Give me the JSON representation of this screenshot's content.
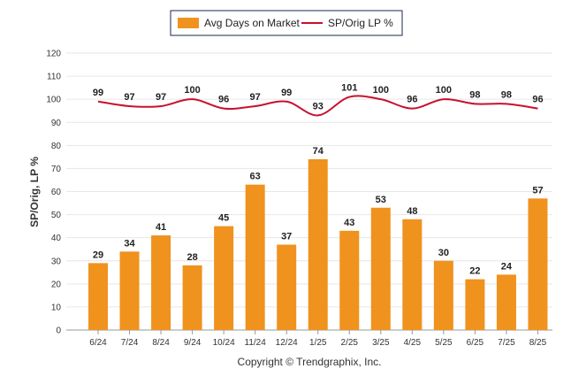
{
  "chart_data": {
    "type": "bar",
    "categories": [
      "6/24",
      "7/24",
      "8/24",
      "9/24",
      "10/24",
      "11/24",
      "12/24",
      "1/25",
      "2/25",
      "3/25",
      "4/25",
      "5/25",
      "6/25",
      "7/25",
      "8/25"
    ],
    "series": [
      {
        "name": "Avg Days on Market",
        "type": "bar",
        "color": "#f0921e",
        "values": [
          29,
          34,
          41,
          28,
          45,
          63,
          37,
          74,
          43,
          53,
          48,
          30,
          22,
          24,
          57
        ]
      },
      {
        "name": "SP/Orig LP %",
        "type": "line",
        "color": "#c8102e",
        "values": [
          99,
          97,
          97,
          100,
          96,
          97,
          99,
          93,
          101,
          100,
          96,
          100,
          98,
          98,
          96
        ]
      }
    ],
    "title": "",
    "xlabel": "",
    "ylabel": "SP/Orig, LP %",
    "ylim": [
      0,
      120
    ],
    "yticks": [
      0,
      10,
      20,
      30,
      40,
      50,
      60,
      70,
      80,
      90,
      100,
      110,
      120
    ],
    "grid": true,
    "legend_position": "top-center",
    "credit": "Copyright © Trendgraphix, Inc."
  }
}
